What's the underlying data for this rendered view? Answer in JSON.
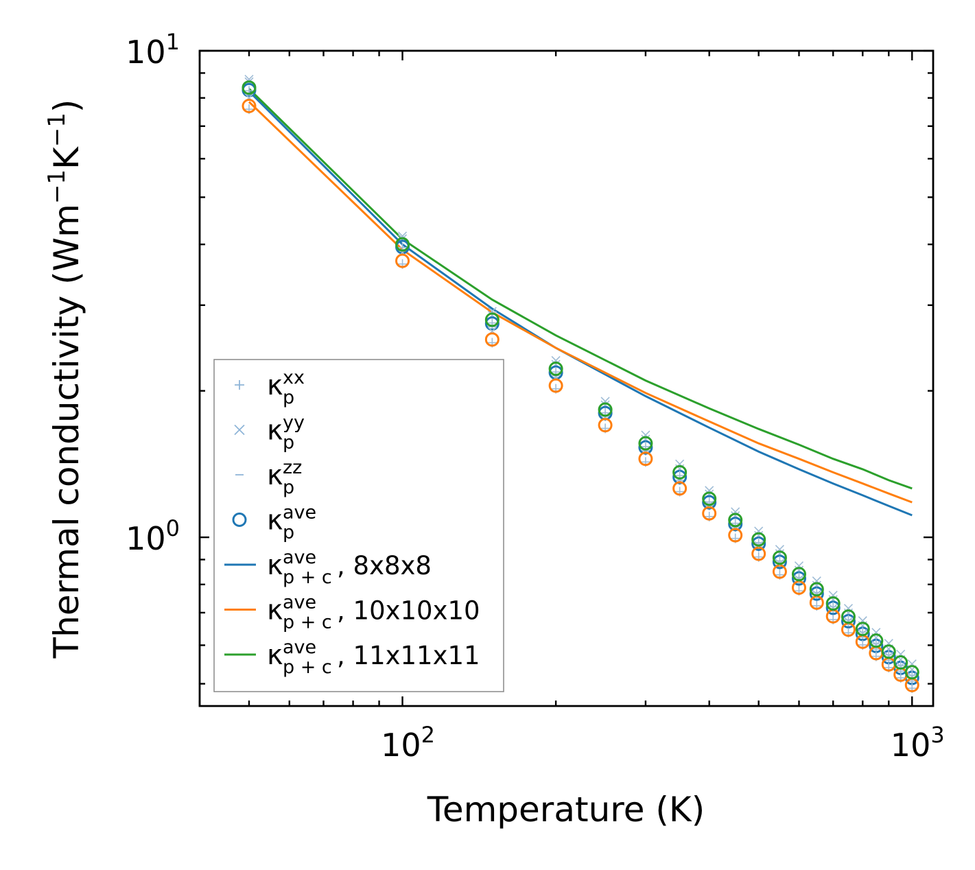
{
  "chart_data": {
    "type": "line",
    "xscale": "log",
    "yscale": "log",
    "xlabel": "Temperature (K)",
    "ylabel_parts": {
      "main": "Thermal conductivity (Wm",
      "sup1": "−1",
      "mid": "K",
      "sup2": "−1",
      "end": ")"
    },
    "xlim": [
      40,
      1100
    ],
    "ylim": [
      0.45,
      10.0
    ],
    "xticks": [
      {
        "value": 100,
        "base": "10",
        "exp": "2"
      },
      {
        "value": 1000,
        "base": "10",
        "exp": "3"
      }
    ],
    "yticks": [
      {
        "value": 1,
        "base": "10",
        "exp": "0"
      },
      {
        "value": 10,
        "base": "10",
        "exp": "1"
      }
    ],
    "x": [
      50,
      100,
      150,
      200,
      250,
      300,
      350,
      400,
      450,
      500,
      550,
      600,
      650,
      700,
      750,
      800,
      850,
      900,
      950,
      1000
    ],
    "marker_series": [
      {
        "name": "kappa_p_ave_8x8x8",
        "color": "#1f77b4",
        "values": [
          8.3,
          3.95,
          2.75,
          2.18,
          1.8,
          1.53,
          1.33,
          1.18,
          1.065,
          0.97,
          0.89,
          0.823,
          0.766,
          0.716,
          0.672,
          0.633,
          0.598,
          0.567,
          0.539,
          0.514
        ]
      },
      {
        "name": "kappa_p_ave_10x10x10",
        "color": "#ff7f0e",
        "values": [
          7.7,
          3.7,
          2.55,
          2.05,
          1.7,
          1.45,
          1.26,
          1.12,
          1.01,
          0.925,
          0.85,
          0.788,
          0.734,
          0.688,
          0.646,
          0.61,
          0.578,
          0.548,
          0.522,
          0.497
        ]
      },
      {
        "name": "kappa_p_ave_11x11x11",
        "color": "#2ca02c",
        "values": [
          8.4,
          4.0,
          2.8,
          2.22,
          1.83,
          1.56,
          1.36,
          1.2,
          1.085,
          0.99,
          0.908,
          0.84,
          0.782,
          0.731,
          0.687,
          0.648,
          0.613,
          0.582,
          0.553,
          0.528
        ]
      }
    ],
    "line_series": [
      {
        "name": "kappa_pc_ave_8x8x8",
        "color": "#1f77b4",
        "x": [
          50,
          100,
          150,
          200,
          300,
          400,
          500,
          600,
          700,
          800,
          900,
          1000
        ],
        "values": [
          8.25,
          4.0,
          2.95,
          2.45,
          1.95,
          1.68,
          1.5,
          1.38,
          1.29,
          1.22,
          1.16,
          1.11
        ]
      },
      {
        "name": "kappa_pc_ave_10x10x10",
        "color": "#ff7f0e",
        "x": [
          50,
          100,
          150,
          200,
          300,
          400,
          500,
          600,
          700,
          800,
          900,
          1000
        ],
        "values": [
          7.85,
          3.9,
          2.9,
          2.45,
          1.98,
          1.73,
          1.56,
          1.45,
          1.36,
          1.29,
          1.23,
          1.18
        ]
      },
      {
        "name": "kappa_pc_ave_11x11x11",
        "color": "#2ca02c",
        "x": [
          50,
          100,
          150,
          200,
          300,
          400,
          500,
          600,
          700,
          800,
          900,
          1000
        ],
        "values": [
          8.35,
          4.1,
          3.08,
          2.6,
          2.1,
          1.84,
          1.67,
          1.55,
          1.45,
          1.38,
          1.31,
          1.26
        ]
      }
    ],
    "legend": {
      "placement": "lower-left",
      "entries": [
        {
          "symbol": "plus",
          "color": "#8fb5d8",
          "base": "κ",
          "sub": "p",
          "sup": "xx",
          "suffix": ""
        },
        {
          "symbol": "cross",
          "color": "#8fb5d8",
          "base": "κ",
          "sub": "p",
          "sup": "yy",
          "suffix": ""
        },
        {
          "symbol": "dash",
          "color": "#8fb5d8",
          "base": "κ",
          "sub": "p",
          "sup": "zz",
          "suffix": ""
        },
        {
          "symbol": "circle",
          "color": "#1f77b4",
          "base": "κ",
          "sub": "p",
          "sup": "ave",
          "suffix": ""
        },
        {
          "symbol": "line",
          "color": "#1f77b4",
          "base": "κ",
          "sub": "p + c",
          "sup": "ave",
          "suffix": ", 8x8x8"
        },
        {
          "symbol": "line",
          "color": "#ff7f0e",
          "base": "κ",
          "sub": "p + c",
          "sup": "ave",
          "suffix": ", 10x10x10"
        },
        {
          "symbol": "line",
          "color": "#2ca02c",
          "base": "κ",
          "sub": "p + c",
          "sup": "ave",
          "suffix": ", 11x11x11"
        }
      ]
    }
  }
}
